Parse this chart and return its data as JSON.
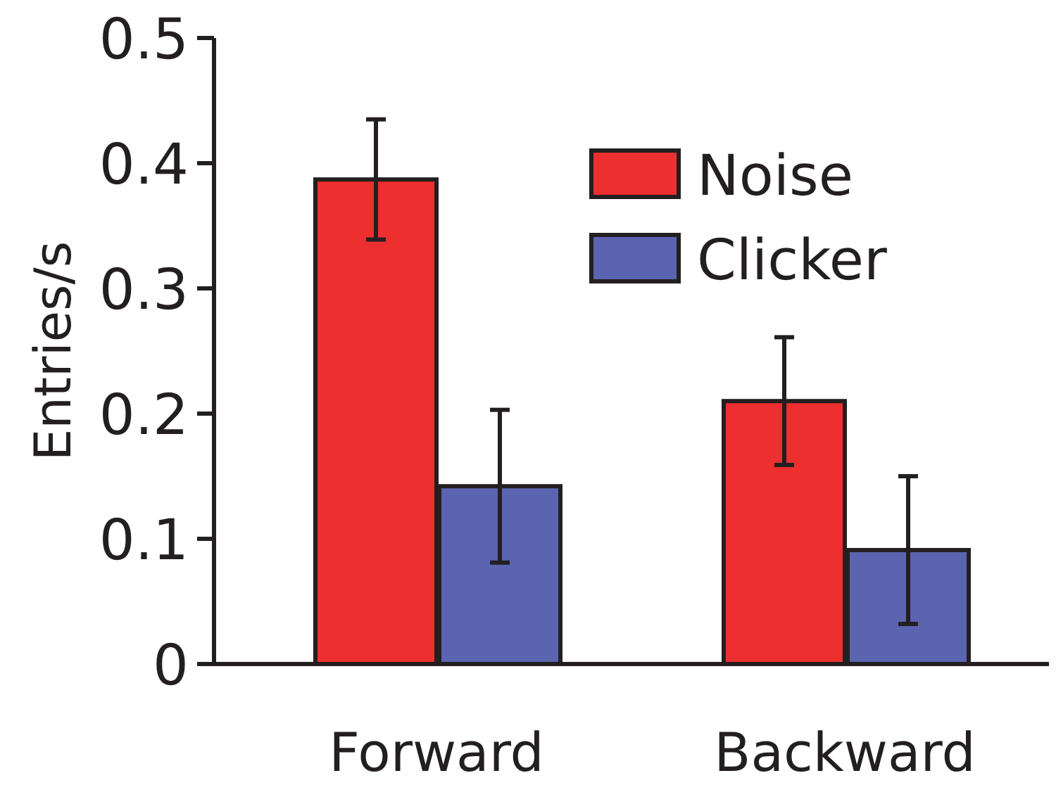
{
  "chart_data": {
    "type": "bar",
    "ylabel": "Entries/s",
    "categories": [
      "Forward",
      "Backward"
    ],
    "series": [
      {
        "name": "Noise",
        "color": "#ed2f2f",
        "values": [
          0.387,
          0.21
        ],
        "errors": [
          0.048,
          0.051
        ]
      },
      {
        "name": "Clicker",
        "color": "#5b64b0",
        "values": [
          0.142,
          0.091
        ],
        "errors": [
          0.061,
          0.059
        ]
      }
    ],
    "ylim": [
      0,
      0.5
    ],
    "yticks": [
      0,
      0.1,
      0.2,
      0.3,
      0.4,
      0.5
    ],
    "grid": false,
    "legend": "top right"
  }
}
